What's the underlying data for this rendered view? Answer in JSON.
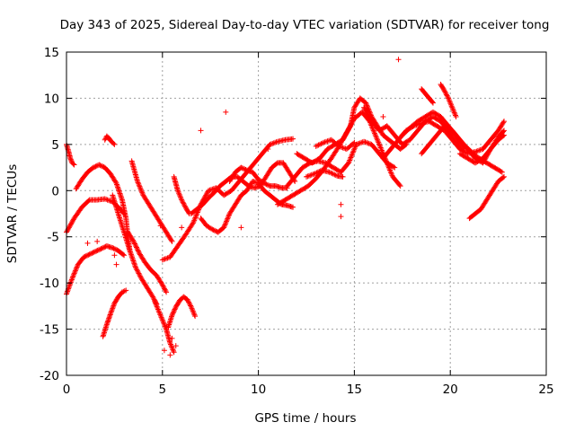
{
  "chart_data": {
    "type": "scatter",
    "title": "Day 343 of 2025, Sidereal Day-to-day VTEC variation (SDTVAR) for receiver tong",
    "xlabel": "GPS time / hours",
    "ylabel": "SDTVAR / TECUs",
    "xlim": [
      0,
      25
    ],
    "ylim": [
      -20,
      15
    ],
    "xticks": [
      0,
      5,
      10,
      15,
      20,
      25
    ],
    "yticks": [
      -20,
      -15,
      -10,
      -5,
      0,
      5,
      10,
      15
    ],
    "xtick_labels": [
      "0",
      "5",
      "10",
      "15",
      "20",
      "25"
    ],
    "ytick_labels": [
      "-20",
      "-15",
      "-10",
      "-5",
      "0",
      "5",
      "10",
      "15"
    ],
    "grid": true,
    "marker": "+",
    "color": "#ff0000",
    "series": [
      {
        "name": "track-01",
        "x": [
          0.0,
          0.1,
          0.2,
          0.3,
          0.4
        ],
        "y": [
          5.0,
          4.3,
          3.5,
          3.0,
          2.8
        ]
      },
      {
        "name": "track-02",
        "x": [
          0.0,
          0.4,
          0.8,
          1.2,
          1.6,
          2.0,
          2.4,
          2.8,
          3.0
        ],
        "y": [
          -4.5,
          -3.0,
          -1.8,
          -1.0,
          -1.0,
          -0.9,
          -1.2,
          -2.0,
          -2.5
        ]
      },
      {
        "name": "track-03",
        "x": [
          0.0,
          0.3,
          0.6,
          0.9,
          1.2,
          1.5,
          1.8,
          2.1,
          2.4,
          2.7,
          3.0
        ],
        "y": [
          -11.2,
          -9.5,
          -8.0,
          -7.2,
          -6.9,
          -6.6,
          -6.3,
          -6.0,
          -6.2,
          -6.5,
          -7.0
        ]
      },
      {
        "name": "track-04",
        "x": [
          0.5,
          0.8,
          1.1,
          1.4,
          1.7,
          2.0,
          2.3,
          2.6,
          2.9,
          3.1,
          3.2,
          3.3
        ],
        "y": [
          0.2,
          1.2,
          2.0,
          2.5,
          2.8,
          2.5,
          1.8,
          0.8,
          -1.0,
          -3.0,
          -5.0,
          -6.5
        ]
      },
      {
        "name": "track-05",
        "x": [
          2.0,
          2.1,
          2.2,
          2.3,
          2.4,
          2.5
        ],
        "y": [
          5.5,
          5.9,
          5.7,
          5.4,
          5.2,
          5.0
        ]
      },
      {
        "name": "track-06",
        "x": [
          1.9,
          2.1,
          2.3,
          2.5,
          2.7,
          2.9,
          3.1
        ],
        "y": [
          -15.8,
          -14.5,
          -13.3,
          -12.2,
          -11.5,
          -11.0,
          -10.8
        ]
      },
      {
        "name": "track-07",
        "x": [
          2.4,
          2.7,
          3.0,
          3.3,
          3.6,
          3.9,
          4.2,
          4.5,
          4.7
        ],
        "y": [
          -0.5,
          -2.5,
          -4.5,
          -6.5,
          -8.3,
          -9.5,
          -10.5,
          -11.5,
          -12.3
        ]
      },
      {
        "name": "track-08",
        "x": [
          3.2,
          3.5,
          3.8,
          4.1,
          4.4,
          4.7,
          5.0,
          5.2
        ],
        "y": [
          -4.5,
          -5.5,
          -6.8,
          -7.8,
          -8.6,
          -9.2,
          -10.2,
          -11.0
        ]
      },
      {
        "name": "track-09",
        "x": [
          3.4,
          3.7,
          4.0,
          4.3,
          4.6,
          4.9,
          5.2,
          5.5
        ],
        "y": [
          3.2,
          1.0,
          -0.5,
          -1.5,
          -2.5,
          -3.5,
          -4.5,
          -5.5
        ]
      },
      {
        "name": "track-10",
        "x": [
          4.6,
          4.8,
          5.0,
          5.2,
          5.4,
          5.6
        ],
        "y": [
          -12.0,
          -13.0,
          -14.0,
          -15.0,
          -16.5,
          -17.5
        ]
      },
      {
        "name": "track-11",
        "x": [
          5.3,
          5.5,
          5.7,
          5.9,
          6.1,
          6.3,
          6.5,
          6.7
        ],
        "y": [
          -14.8,
          -13.5,
          -12.6,
          -11.9,
          -11.5,
          -11.8,
          -12.6,
          -13.6
        ]
      },
      {
        "name": "track-12",
        "x": [
          5.0,
          5.4,
          5.8,
          6.2,
          6.6,
          7.0,
          7.4,
          7.8,
          8.2,
          8.6,
          9.0,
          9.4,
          9.8,
          10.2,
          10.6,
          11.0,
          11.4,
          11.8
        ],
        "y": [
          -7.5,
          -7.2,
          -6.0,
          -4.8,
          -3.5,
          -1.5,
          0.0,
          0.3,
          -0.5,
          0.0,
          1.0,
          2.0,
          3.0,
          4.0,
          5.0,
          5.3,
          5.5,
          5.6
        ]
      },
      {
        "name": "track-13",
        "x": [
          5.6,
          5.8,
          6.0,
          6.2,
          6.4
        ],
        "y": [
          1.5,
          0.0,
          -1.0,
          -1.8,
          -2.5
        ]
      },
      {
        "name": "track-14",
        "x": [
          6.5,
          6.8,
          7.1,
          7.4,
          7.7,
          8.0,
          8.3,
          8.6,
          8.9,
          9.2,
          9.5,
          9.8,
          10.1,
          10.4,
          10.7,
          11.0,
          11.3,
          11.6,
          11.9
        ],
        "y": [
          -2.5,
          -2.0,
          -1.5,
          -0.8,
          -0.2,
          0.5,
          1.0,
          1.5,
          1.5,
          1.0,
          0.5,
          0.3,
          0.5,
          1.5,
          2.5,
          3.0,
          3.0,
          2.0,
          1.0
        ]
      },
      {
        "name": "track-15",
        "x": [
          7.0,
          7.3,
          7.6,
          7.9,
          8.2,
          8.5,
          8.8,
          9.1,
          9.4,
          9.7,
          10.0,
          10.3,
          10.6,
          10.9,
          11.2,
          11.5,
          11.8
        ],
        "y": [
          -3.0,
          -3.8,
          -4.2,
          -4.5,
          -4.0,
          -2.5,
          -1.5,
          -0.5,
          0.0,
          1.0,
          0.8,
          0.0,
          -0.5,
          -1.0,
          -1.5,
          -1.6,
          -1.8
        ]
      },
      {
        "name": "track-16",
        "x": [
          8.5,
          8.8,
          9.1,
          9.4,
          9.7,
          10.0,
          10.3,
          10.6,
          10.9,
          11.2,
          11.5
        ],
        "y": [
          1.0,
          2.0,
          2.5,
          2.2,
          2.0,
          1.2,
          0.8,
          0.5,
          0.5,
          0.3,
          0.3
        ]
      },
      {
        "name": "track-17",
        "x": [
          11.0,
          11.4,
          11.8,
          12.2,
          12.6,
          13.0,
          13.4,
          13.8,
          14.2,
          14.6,
          15.0,
          15.4,
          15.8,
          16.2,
          16.6,
          17.0,
          17.4
        ],
        "y": [
          -1.5,
          -1.0,
          -0.5,
          0.0,
          0.5,
          1.3,
          2.3,
          3.5,
          4.8,
          6.3,
          7.8,
          8.5,
          7.5,
          5.5,
          3.5,
          1.5,
          0.5
        ]
      },
      {
        "name": "track-18",
        "x": [
          11.5,
          11.9,
          12.3,
          12.7,
          13.1,
          13.5,
          13.9,
          14.3,
          14.7,
          15.1,
          15.5,
          15.9,
          16.3,
          16.7,
          17.1
        ],
        "y": [
          0.5,
          1.5,
          2.5,
          3.0,
          3.2,
          3.0,
          2.5,
          2.0,
          3.0,
          5.0,
          5.3,
          5.0,
          4.0,
          3.0,
          2.5
        ]
      },
      {
        "name": "track-19",
        "x": [
          12.0,
          12.4,
          12.8,
          13.2,
          13.6,
          14.0,
          14.4,
          14.8,
          15.0,
          15.3,
          15.6,
          15.9,
          16.2,
          16.5,
          16.8,
          17.1,
          17.4,
          17.7
        ],
        "y": [
          4.0,
          3.5,
          3.0,
          3.5,
          4.5,
          5.0,
          5.5,
          7.0,
          9.0,
          10.0,
          9.5,
          8.0,
          7.0,
          6.0,
          5.5,
          5.0,
          4.5,
          5.0
        ]
      },
      {
        "name": "track-20",
        "x": [
          12.5,
          12.9,
          13.3,
          13.7,
          14.1,
          14.4
        ],
        "y": [
          1.5,
          1.8,
          2.2,
          2.0,
          1.6,
          1.5
        ]
      },
      {
        "name": "track-21",
        "x": [
          13.0,
          13.4,
          13.8,
          14.2,
          14.6,
          15.0
        ],
        "y": [
          4.8,
          5.2,
          5.5,
          4.8,
          4.5,
          5.2
        ]
      },
      {
        "name": "track-22",
        "x": [
          15.5,
          15.9,
          16.3,
          16.7,
          17.1,
          17.5,
          17.9,
          18.3,
          18.7,
          19.1,
          19.5,
          19.9,
          20.3,
          20.7
        ],
        "y": [
          9.0,
          7.5,
          6.5,
          7.0,
          6.0,
          5.0,
          5.5,
          6.5,
          7.5,
          8.0,
          7.5,
          6.5,
          5.5,
          4.5
        ]
      },
      {
        "name": "track-23",
        "x": [
          16.5,
          16.9,
          17.3,
          17.7,
          18.1,
          18.5,
          18.9,
          19.3,
          19.7,
          20.1,
          20.5,
          20.9,
          21.3,
          21.7,
          22.1,
          22.5,
          22.8
        ],
        "y": [
          3.5,
          4.5,
          5.5,
          6.5,
          7.0,
          7.3,
          7.5,
          7.0,
          6.5,
          5.5,
          4.5,
          4.0,
          4.2,
          4.5,
          5.5,
          6.5,
          7.5
        ]
      },
      {
        "name": "track-24",
        "x": [
          17.5,
          17.9,
          18.3,
          18.7,
          19.1,
          19.5,
          19.9,
          20.3,
          20.7,
          21.1,
          21.5,
          21.9,
          22.3,
          22.7
        ],
        "y": [
          6.0,
          6.8,
          7.5,
          8.0,
          8.5,
          8.0,
          7.0,
          6.0,
          5.0,
          4.2,
          3.5,
          3.0,
          2.5,
          2.0
        ]
      },
      {
        "name": "track-25",
        "x": [
          18.5,
          18.9,
          19.3,
          19.7,
          20.1,
          20.5,
          20.9,
          21.3,
          21.7,
          22.1,
          22.5,
          22.8
        ],
        "y": [
          4.0,
          5.0,
          6.0,
          7.0,
          6.5,
          5.5,
          4.5,
          3.5,
          3.0,
          4.5,
          5.8,
          6.5
        ]
      },
      {
        "name": "track-26",
        "x": [
          20.5,
          20.9,
          21.3,
          21.7,
          22.1,
          22.5,
          22.8
        ],
        "y": [
          4.0,
          3.5,
          3.0,
          3.5,
          4.5,
          5.5,
          6.0
        ]
      },
      {
        "name": "track-27",
        "x": [
          21.0,
          21.3,
          21.6,
          21.9,
          22.2,
          22.5,
          22.8
        ],
        "y": [
          -3.0,
          -2.5,
          -2.0,
          -1.0,
          0.0,
          1.0,
          1.5
        ]
      },
      {
        "name": "track-28",
        "x": [
          19.5,
          19.7,
          19.9,
          20.1,
          20.3
        ],
        "y": [
          11.5,
          10.8,
          10.0,
          9.0,
          8.0
        ]
      },
      {
        "name": "track-29",
        "x": [
          18.5,
          18.7,
          18.9,
          19.1
        ],
        "y": [
          11.0,
          10.5,
          10.0,
          9.5
        ]
      },
      {
        "name": "outliers",
        "x": [
          17.3,
          8.3,
          7.0,
          14.3,
          14.3,
          16.5,
          2.5,
          2.6,
          5.1,
          5.4,
          5.5,
          5.7,
          4.9,
          6.0,
          9.1,
          10.5,
          1.1,
          1.6
        ],
        "y": [
          14.2,
          8.5,
          6.5,
          -1.5,
          -2.8,
          8.0,
          -7.0,
          -8.0,
          -17.3,
          -17.8,
          -16.0,
          -16.8,
          -3.8,
          -4.0,
          -4.0,
          4.5,
          -5.7,
          -5.5
        ]
      }
    ]
  }
}
